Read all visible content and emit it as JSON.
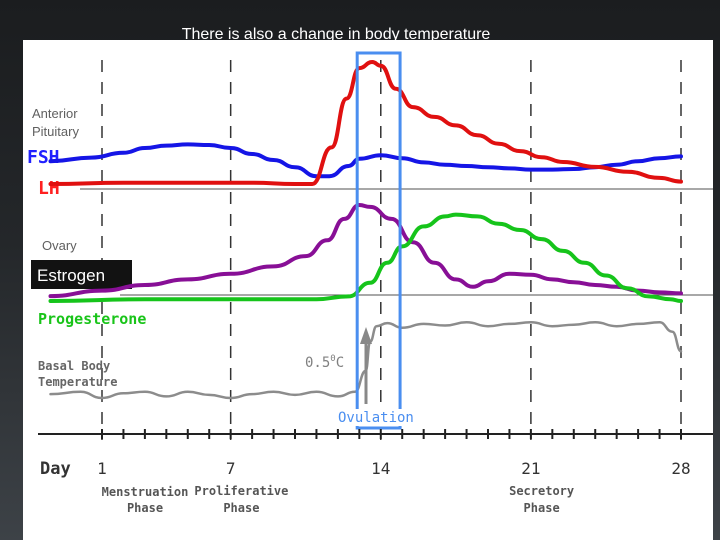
{
  "slide": {
    "title": "There is also a change in body temperature",
    "accent_color": "#ee7d1e"
  },
  "chart_data": {
    "type": "line",
    "x_axis": {
      "label": "Day",
      "range": [
        1,
        28
      ],
      "tick_labels": [
        "1",
        "7",
        "14",
        "21",
        "28"
      ],
      "tick_values": [
        1,
        7,
        14,
        21,
        28
      ]
    },
    "phases": [
      {
        "name": "Menstruation Phase",
        "line1": "Menstruation",
        "line2": "Phase",
        "center_day": 1
      },
      {
        "name": "Proliferative Phase",
        "line1": "Proliferative",
        "line2": "Phase",
        "center_day": 7.5
      },
      {
        "name": "Secretory Phase",
        "line1": "Secretory",
        "line2": "Phase",
        "center_day": 21.5
      }
    ],
    "section_labels": {
      "anterior_pituitary_line1": "Anterior",
      "anterior_pituitary_line2": "Pituitary",
      "ovary": "Ovary",
      "basal_line1": "Basal Body",
      "basal_line2": "Temperature"
    },
    "annotations": {
      "temp_rise": "0.5",
      "temp_rise_unit_sup": "0",
      "temp_rise_unit": "C",
      "ovulation": "Ovulation",
      "ovulation_window_days": [
        12.9,
        14.9
      ]
    },
    "series": [
      {
        "name": "FSH",
        "color": "#1515e6",
        "label_color": "#2020ff",
        "panel": "pituitary",
        "values": [
          [
            -1.4,
            0.28
          ],
          [
            0.5,
            0.34
          ],
          [
            2,
            0.42
          ],
          [
            3,
            0.5
          ],
          [
            4,
            0.54
          ],
          [
            5,
            0.56
          ],
          [
            6,
            0.55
          ],
          [
            7,
            0.5
          ],
          [
            8,
            0.4
          ],
          [
            9,
            0.3
          ],
          [
            10,
            0.18
          ],
          [
            11,
            0.03
          ],
          [
            11.6,
            0.03
          ],
          [
            12.5,
            0.2
          ],
          [
            13,
            0.32
          ],
          [
            14,
            0.38
          ],
          [
            15,
            0.33
          ],
          [
            16,
            0.26
          ],
          [
            17,
            0.22
          ],
          [
            18,
            0.2
          ],
          [
            19,
            0.18
          ],
          [
            20,
            0.16
          ],
          [
            21,
            0.14
          ],
          [
            22,
            0.14
          ],
          [
            23,
            0.15
          ],
          [
            24,
            0.18
          ],
          [
            25,
            0.22
          ],
          [
            26,
            0.28
          ],
          [
            27,
            0.33
          ],
          [
            28,
            0.36
          ]
        ]
      },
      {
        "name": "LH",
        "color": "#e01010",
        "label_color": "#ff2020",
        "panel": "pituitary",
        "values": [
          [
            -1.4,
            0.0
          ],
          [
            2,
            0.01
          ],
          [
            5,
            0.01
          ],
          [
            8,
            0.01
          ],
          [
            10,
            0.0
          ],
          [
            10.8,
            0.0
          ],
          [
            11.7,
            0.3
          ],
          [
            12.4,
            0.7
          ],
          [
            13,
            0.95
          ],
          [
            13.6,
            1.0
          ],
          [
            14,
            0.97
          ],
          [
            14.7,
            0.78
          ],
          [
            15.5,
            0.63
          ],
          [
            16.5,
            0.55
          ],
          [
            17.5,
            0.48
          ],
          [
            18.5,
            0.4
          ],
          [
            19.5,
            0.33
          ],
          [
            20.5,
            0.27
          ],
          [
            21.5,
            0.22
          ],
          [
            22.5,
            0.18
          ],
          [
            24,
            0.14
          ],
          [
            25.5,
            0.1
          ],
          [
            27,
            0.05
          ],
          [
            28,
            0.02
          ]
        ]
      },
      {
        "name": "Estrogen",
        "color": "#880f96",
        "label_color": "#ffffff",
        "panel": "ovary",
        "values": [
          [
            -1.4,
            0.02
          ],
          [
            1,
            0.08
          ],
          [
            3,
            0.14
          ],
          [
            5,
            0.2
          ],
          [
            7,
            0.26
          ],
          [
            9,
            0.34
          ],
          [
            10.5,
            0.45
          ],
          [
            11.5,
            0.62
          ],
          [
            12.3,
            0.85
          ],
          [
            13,
            1.0
          ],
          [
            13.5,
            0.98
          ],
          [
            14.5,
            0.85
          ],
          [
            15.5,
            0.6
          ],
          [
            16.5,
            0.38
          ],
          [
            17.5,
            0.2
          ],
          [
            18.3,
            0.12
          ],
          [
            19,
            0.18
          ],
          [
            20,
            0.26
          ],
          [
            21,
            0.25
          ],
          [
            22,
            0.2
          ],
          [
            23,
            0.17
          ],
          [
            24,
            0.14
          ],
          [
            25,
            0.12
          ],
          [
            26,
            0.08
          ],
          [
            27,
            0.06
          ],
          [
            28,
            0.05
          ]
        ]
      },
      {
        "name": "Progesterone",
        "color": "#16c41b",
        "label_color": "#19c419",
        "panel": "ovary",
        "values": [
          [
            -1.4,
            0.0
          ],
          [
            3,
            0.02
          ],
          [
            6,
            0.02
          ],
          [
            9,
            0.02
          ],
          [
            11,
            0.02
          ],
          [
            12.5,
            0.05
          ],
          [
            13.5,
            0.2
          ],
          [
            14.3,
            0.42
          ],
          [
            15,
            0.6
          ],
          [
            16,
            0.82
          ],
          [
            17,
            0.93
          ],
          [
            17.5,
            0.95
          ],
          [
            18.5,
            0.93
          ],
          [
            19.5,
            0.85
          ],
          [
            20.5,
            0.78
          ],
          [
            21.5,
            0.68
          ],
          [
            22.5,
            0.55
          ],
          [
            23.5,
            0.42
          ],
          [
            24.5,
            0.28
          ],
          [
            25.5,
            0.14
          ],
          [
            26.5,
            0.05
          ],
          [
            27.5,
            0.02
          ],
          [
            28,
            0.0
          ]
        ]
      },
      {
        "name": "Basal Body Temperature",
        "color": "#8c8c8c",
        "panel": "temperature",
        "values": [
          [
            -1.4,
            0.05
          ],
          [
            0,
            0.08
          ],
          [
            1,
            0.0
          ],
          [
            2,
            0.06
          ],
          [
            3,
            0.08
          ],
          [
            4,
            0.02
          ],
          [
            5,
            0.08
          ],
          [
            6,
            0.04
          ],
          [
            7,
            0.0
          ],
          [
            8,
            0.05
          ],
          [
            9,
            0.08
          ],
          [
            10,
            0.04
          ],
          [
            11,
            0.08
          ],
          [
            12,
            0.02
          ],
          [
            12.8,
            0.08
          ],
          [
            13.3,
            0.35
          ],
          [
            13.5,
            0.72
          ],
          [
            13.8,
            0.92
          ],
          [
            14.3,
            0.96
          ],
          [
            15,
            0.9
          ],
          [
            16,
            0.95
          ],
          [
            17,
            0.93
          ],
          [
            18,
            0.97
          ],
          [
            19,
            0.92
          ],
          [
            20,
            0.95
          ],
          [
            21,
            0.97
          ],
          [
            22,
            0.92
          ],
          [
            23,
            0.94
          ],
          [
            24,
            0.97
          ],
          [
            25,
            0.92
          ],
          [
            26,
            0.95
          ],
          [
            27,
            0.97
          ],
          [
            27.6,
            0.85
          ],
          [
            28,
            0.6
          ]
        ]
      }
    ],
    "ylim": [
      0,
      1
    ],
    "grid": "vertical dashed lines at days 1, 7, 14, 21, 28"
  }
}
